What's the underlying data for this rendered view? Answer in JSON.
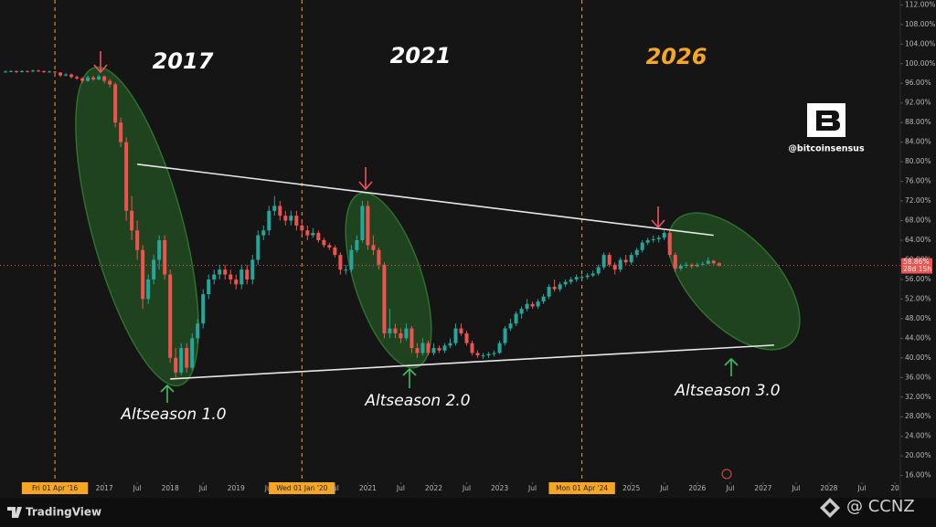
{
  "chart_data": {
    "type": "candlestick",
    "up_color": "#26a69a",
    "down_color": "#ef5350",
    "x": [
      "2015-07",
      "2015-08",
      "2015-09",
      "2015-10",
      "2015-11",
      "2015-12",
      "2016-01",
      "2016-02",
      "2016-03",
      "2016-04",
      "2016-05",
      "2016-06",
      "2016-07",
      "2016-08",
      "2016-09",
      "2016-10",
      "2016-11",
      "2016-12",
      "2017-01",
      "2017-02",
      "2017-03",
      "2017-04",
      "2017-05",
      "2017-06",
      "2017-07",
      "2017-08",
      "2017-09",
      "2017-10",
      "2017-11",
      "2017-12",
      "2018-01",
      "2018-02",
      "2018-03",
      "2018-04",
      "2018-05",
      "2018-06",
      "2018-07",
      "2018-08",
      "2018-09",
      "2018-10",
      "2018-11",
      "2018-12",
      "2019-01",
      "2019-02",
      "2019-03",
      "2019-04",
      "2019-05",
      "2019-06",
      "2019-07",
      "2019-08",
      "2019-09",
      "2019-10",
      "2019-11",
      "2019-12",
      "2020-01",
      "2020-02",
      "2020-03",
      "2020-04",
      "2020-05",
      "2020-06",
      "2020-07",
      "2020-08",
      "2020-09",
      "2020-10",
      "2020-11",
      "2020-12",
      "2021-01",
      "2021-02",
      "2021-03",
      "2021-04",
      "2021-05",
      "2021-06",
      "2021-07",
      "2021-08",
      "2021-09",
      "2021-10",
      "2021-11",
      "2021-12",
      "2022-01",
      "2022-02",
      "2022-03",
      "2022-04",
      "2022-05",
      "2022-06",
      "2022-07",
      "2022-08",
      "2022-09",
      "2022-10",
      "2022-11",
      "2022-12",
      "2023-01",
      "2023-02",
      "2023-03",
      "2023-04",
      "2023-05",
      "2023-06",
      "2023-07",
      "2023-08",
      "2023-09",
      "2023-10",
      "2023-11",
      "2023-12",
      "2024-01",
      "2024-02",
      "2024-03",
      "2024-04",
      "2024-05",
      "2024-06",
      "2024-07",
      "2024-08",
      "2024-09",
      "2024-10",
      "2024-11",
      "2024-12",
      "2025-01",
      "2025-02",
      "2025-03",
      "2025-04",
      "2025-05",
      "2025-06",
      "2025-07",
      "2025-08",
      "2025-09",
      "2025-10",
      "2025-11",
      "2025-12",
      "2026-01",
      "2026-02",
      "2026-03",
      "2026-04",
      "2026-05"
    ],
    "ohlc": [
      [
        98.3,
        98.6,
        98.2,
        98.4
      ],
      [
        98.4,
        98.7,
        98.3,
        98.5
      ],
      [
        98.5,
        98.6,
        98.1,
        98.3
      ],
      [
        98.3,
        98.7,
        98.2,
        98.5
      ],
      [
        98.5,
        98.6,
        98.2,
        98.4
      ],
      [
        98.4,
        98.8,
        98.3,
        98.6
      ],
      [
        98.6,
        98.8,
        98.3,
        98.5
      ],
      [
        98.5,
        98.6,
        98.1,
        98.3
      ],
      [
        98.3,
        98.6,
        98.2,
        98.4
      ],
      [
        98.4,
        98.5,
        98.0,
        98.2
      ],
      [
        98.2,
        98.3,
        97.3,
        97.6
      ],
      [
        97.6,
        98.1,
        97.4,
        97.8
      ],
      [
        97.8,
        98.0,
        97.0,
        97.3
      ],
      [
        97.3,
        97.6,
        96.7,
        97.0
      ],
      [
        97.0,
        97.3,
        96.0,
        96.5
      ],
      [
        96.5,
        97.6,
        96.3,
        97.2
      ],
      [
        97.2,
        97.5,
        96.5,
        96.8
      ],
      [
        96.8,
        97.8,
        96.6,
        97.4
      ],
      [
        97.4,
        97.6,
        96.0,
        96.5
      ],
      [
        96.5,
        96.9,
        95.2,
        95.8
      ],
      [
        95.8,
        96.2,
        87.0,
        88
      ],
      [
        88,
        89,
        83,
        84
      ],
      [
        84,
        85,
        68,
        70
      ],
      [
        70,
        73,
        64,
        66
      ],
      [
        66,
        68,
        60,
        62
      ],
      [
        62,
        63,
        50,
        52
      ],
      [
        52,
        57,
        51,
        56
      ],
      [
        56,
        61,
        55,
        60
      ],
      [
        60,
        65,
        58,
        64
      ],
      [
        64,
        65,
        56,
        57
      ],
      [
        57,
        58,
        39,
        40
      ],
      [
        40,
        42,
        36,
        37
      ],
      [
        37,
        43,
        36.5,
        42
      ],
      [
        42,
        43,
        37,
        38
      ],
      [
        38,
        45,
        37.5,
        44
      ],
      [
        44,
        48,
        43,
        47
      ],
      [
        47,
        54,
        46,
        53
      ],
      [
        53,
        57,
        52,
        56
      ],
      [
        56,
        58,
        55,
        57
      ],
      [
        57,
        59,
        56,
        58
      ],
      [
        58,
        59,
        56,
        57
      ],
      [
        57,
        58,
        55,
        56
      ],
      [
        56,
        57,
        54,
        55
      ],
      [
        55,
        59,
        54,
        58
      ],
      [
        58,
        59,
        55,
        56
      ],
      [
        56,
        61,
        55,
        60
      ],
      [
        60,
        66,
        59,
        65
      ],
      [
        65,
        67,
        64,
        66
      ],
      [
        66,
        71,
        65,
        70
      ],
      [
        70,
        73,
        69,
        71
      ],
      [
        71,
        72,
        68,
        69
      ],
      [
        69,
        70,
        67,
        68
      ],
      [
        68,
        70,
        67,
        69
      ],
      [
        69,
        70,
        66,
        67
      ],
      [
        67,
        68,
        65,
        66
      ],
      [
        66,
        67,
        64,
        65
      ],
      [
        65,
        66.5,
        64.5,
        65.5
      ],
      [
        65.5,
        66,
        63.5,
        64
      ],
      [
        64,
        64.5,
        62.5,
        63
      ],
      [
        63,
        63.5,
        62,
        62.5
      ],
      [
        62.5,
        63,
        60.5,
        61
      ],
      [
        61,
        61.5,
        57,
        58
      ],
      [
        58,
        59,
        57,
        58
      ],
      [
        58,
        63,
        57.5,
        62
      ],
      [
        62,
        65,
        61.5,
        64
      ],
      [
        64,
        72,
        63.5,
        71
      ],
      [
        71,
        72,
        62,
        63
      ],
      [
        63,
        65,
        61,
        62
      ],
      [
        62,
        62.5,
        58,
        59
      ],
      [
        59,
        59.5,
        44,
        45
      ],
      [
        45,
        50,
        44,
        46
      ],
      [
        46,
        47,
        44,
        45
      ],
      [
        45,
        46,
        43,
        44
      ],
      [
        44,
        47,
        43.5,
        46
      ],
      [
        46,
        46.5,
        41,
        42
      ],
      [
        42,
        43,
        40,
        41
      ],
      [
        41,
        44,
        40.5,
        43
      ],
      [
        43,
        43.5,
        40.5,
        41
      ],
      [
        41,
        43,
        40.5,
        42
      ],
      [
        42,
        42.5,
        41,
        41.5
      ],
      [
        41.5,
        43,
        41,
        42.5
      ],
      [
        42.5,
        44,
        42,
        43
      ],
      [
        43,
        47,
        42.5,
        46
      ],
      [
        46,
        47,
        44.5,
        45
      ],
      [
        45,
        45.5,
        42.5,
        43
      ],
      [
        43,
        43.5,
        40.5,
        41
      ],
      [
        41,
        41.5,
        40,
        40.5
      ],
      [
        40.5,
        41,
        39.8,
        40.5
      ],
      [
        40.5,
        41.2,
        40,
        40.8
      ],
      [
        40.8,
        41.5,
        40.3,
        41
      ],
      [
        41,
        43.5,
        40.8,
        43
      ],
      [
        43,
        46.5,
        42.5,
        46
      ],
      [
        46,
        48,
        45.5,
        47
      ],
      [
        47,
        49.5,
        46.5,
        49
      ],
      [
        49,
        50.5,
        48,
        50
      ],
      [
        50,
        52,
        49.5,
        51
      ],
      [
        51,
        51.5,
        50,
        50.5
      ],
      [
        50.5,
        52,
        50,
        51.5
      ],
      [
        51.5,
        53,
        51,
        52.5
      ],
      [
        52.5,
        55,
        52,
        54.5
      ],
      [
        54.5,
        56,
        53.5,
        54
      ],
      [
        54,
        55.5,
        53.5,
        55
      ],
      [
        55,
        56,
        54.5,
        55.5
      ],
      [
        55.5,
        56.5,
        55,
        56
      ],
      [
        56,
        57,
        55.5,
        56.5
      ],
      [
        56.5,
        57,
        56,
        56.5
      ],
      [
        56.5,
        57.3,
        56,
        56.8
      ],
      [
        56.8,
        57.8,
        56.5,
        57.2
      ],
      [
        57.2,
        59,
        56.8,
        58.5
      ],
      [
        58.5,
        61.5,
        58,
        61
      ],
      [
        61,
        61.5,
        58.5,
        59
      ],
      [
        59,
        59.5,
        57,
        58
      ],
      [
        58,
        60.5,
        57.5,
        60
      ],
      [
        60,
        61,
        59,
        59.5
      ],
      [
        59.5,
        61.5,
        59,
        61
      ],
      [
        61,
        62.5,
        60.5,
        62
      ],
      [
        62,
        64,
        61.5,
        63.5
      ],
      [
        63.5,
        64.5,
        63,
        64
      ],
      [
        64,
        65,
        63.5,
        64.2
      ],
      [
        64.2,
        65,
        63.5,
        64.5
      ],
      [
        64.5,
        66,
        64,
        65.5
      ],
      [
        65.5,
        66,
        60.5,
        61
      ],
      [
        61,
        61.5,
        57.5,
        58.2
      ],
      [
        58.2,
        59.2,
        57.8,
        58.8
      ],
      [
        58.8,
        59.5,
        58.3,
        59
      ],
      [
        59,
        59.3,
        58.2,
        58.7
      ],
      [
        58.7,
        59.4,
        58.5,
        59
      ],
      [
        59,
        59.6,
        58.7,
        59.2
      ],
      [
        59.2,
        60.5,
        59,
        59.8
      ],
      [
        59.8,
        60,
        59,
        59.3
      ],
      [
        59.3,
        59.5,
        58.6,
        58.86
      ]
    ],
    "last_value_label": "58.86%",
    "countdown": "28d 15h",
    "xlim": [
      "2015-06",
      "2029-02"
    ],
    "ylim": [
      15,
      113
    ],
    "yticks": [
      {
        "value": 16,
        "label": "16.00%"
      },
      {
        "value": 20,
        "label": "20.00%"
      },
      {
        "value": 24,
        "label": "24.00%"
      },
      {
        "value": 28,
        "label": "28.00%"
      },
      {
        "value": 32,
        "label": "32.00%"
      },
      {
        "value": 36,
        "label": "36.00%"
      },
      {
        "value": 40,
        "label": "40.00%"
      },
      {
        "value": 44,
        "label": "44.00%"
      },
      {
        "value": 48,
        "label": "48.00%"
      },
      {
        "value": 52,
        "label": "52.00%"
      },
      {
        "value": 56,
        "label": "56.00%"
      },
      {
        "value": 60,
        "label": "60.00%"
      },
      {
        "value": 64,
        "label": "64.00%"
      },
      {
        "value": 68,
        "label": "68.00%"
      },
      {
        "value": 72,
        "label": "72.00%"
      },
      {
        "value": 76,
        "label": "76.00%"
      },
      {
        "value": 80,
        "label": "80.00%"
      },
      {
        "value": 84,
        "label": "84.00%"
      },
      {
        "value": 88,
        "label": "88.00%"
      },
      {
        "value": 92,
        "label": "92.00%"
      },
      {
        "value": 96,
        "label": "96.00%"
      },
      {
        "value": 100,
        "label": "100.00%"
      },
      {
        "value": 104,
        "label": "104.00%"
      },
      {
        "value": 108,
        "label": "108.00%"
      },
      {
        "value": 112,
        "label": "112.00%"
      }
    ],
    "xticks": [
      {
        "value": "2016-04",
        "label": "Fri 01 Apr '16"
      },
      {
        "value": "2017-01",
        "label": "2017"
      },
      {
        "value": "2017-07",
        "label": "Jul"
      },
      {
        "value": "2018-01",
        "label": "2018"
      },
      {
        "value": "2018-07",
        "label": "Jul"
      },
      {
        "value": "2019-01",
        "label": "2019"
      },
      {
        "value": "2019-07",
        "label": "Jul"
      },
      {
        "value": "2020-01",
        "label": "Wed 01 Jan '20"
      },
      {
        "value": "2020-07",
        "label": "Jul"
      },
      {
        "value": "2021-01",
        "label": "2021"
      },
      {
        "value": "2021-07",
        "label": "Jul"
      },
      {
        "value": "2022-01",
        "label": "2022"
      },
      {
        "value": "2022-07",
        "label": "Jul"
      },
      {
        "value": "2023-01",
        "label": "2023"
      },
      {
        "value": "2023-07",
        "label": "Jul"
      },
      {
        "value": "2024-04",
        "label": "Mon 01 Apr '24"
      },
      {
        "value": "2025-01",
        "label": "2025"
      },
      {
        "value": "2025-07",
        "label": "Jul"
      },
      {
        "value": "2026-01",
        "label": "2026"
      },
      {
        "value": "2026-07",
        "label": "Jul"
      },
      {
        "value": "2027-01",
        "label": "2027"
      },
      {
        "value": "2027-07",
        "label": "Jul"
      },
      {
        "value": "2028-01",
        "label": "2028"
      },
      {
        "value": "2028-07",
        "label": "Jul"
      },
      {
        "value": "2029-01",
        "label": "20"
      }
    ],
    "cycle_lines": [
      "2016-04",
      "2020-01",
      "2024-04"
    ],
    "cycle_color": "#f5a623",
    "trendlines": [
      {
        "x": [
          "2017-07",
          "2026-04"
        ],
        "y": [
          79.5,
          65
        ]
      },
      {
        "x": [
          "2018-01",
          "2027-03"
        ],
        "y": [
          35.7,
          42.6
        ]
      }
    ],
    "grid": false,
    "annotations": {
      "cycle_labels": [
        "2017",
        "2021",
        "2026"
      ],
      "altseason_labels": [
        "Altseason 1.0",
        "Altseason 2.0",
        "Altseason 3.0"
      ],
      "handle": "@bitcoinsensus"
    }
  },
  "footer": {
    "brand": "TradingView",
    "watermark": "@ CCNZ"
  }
}
